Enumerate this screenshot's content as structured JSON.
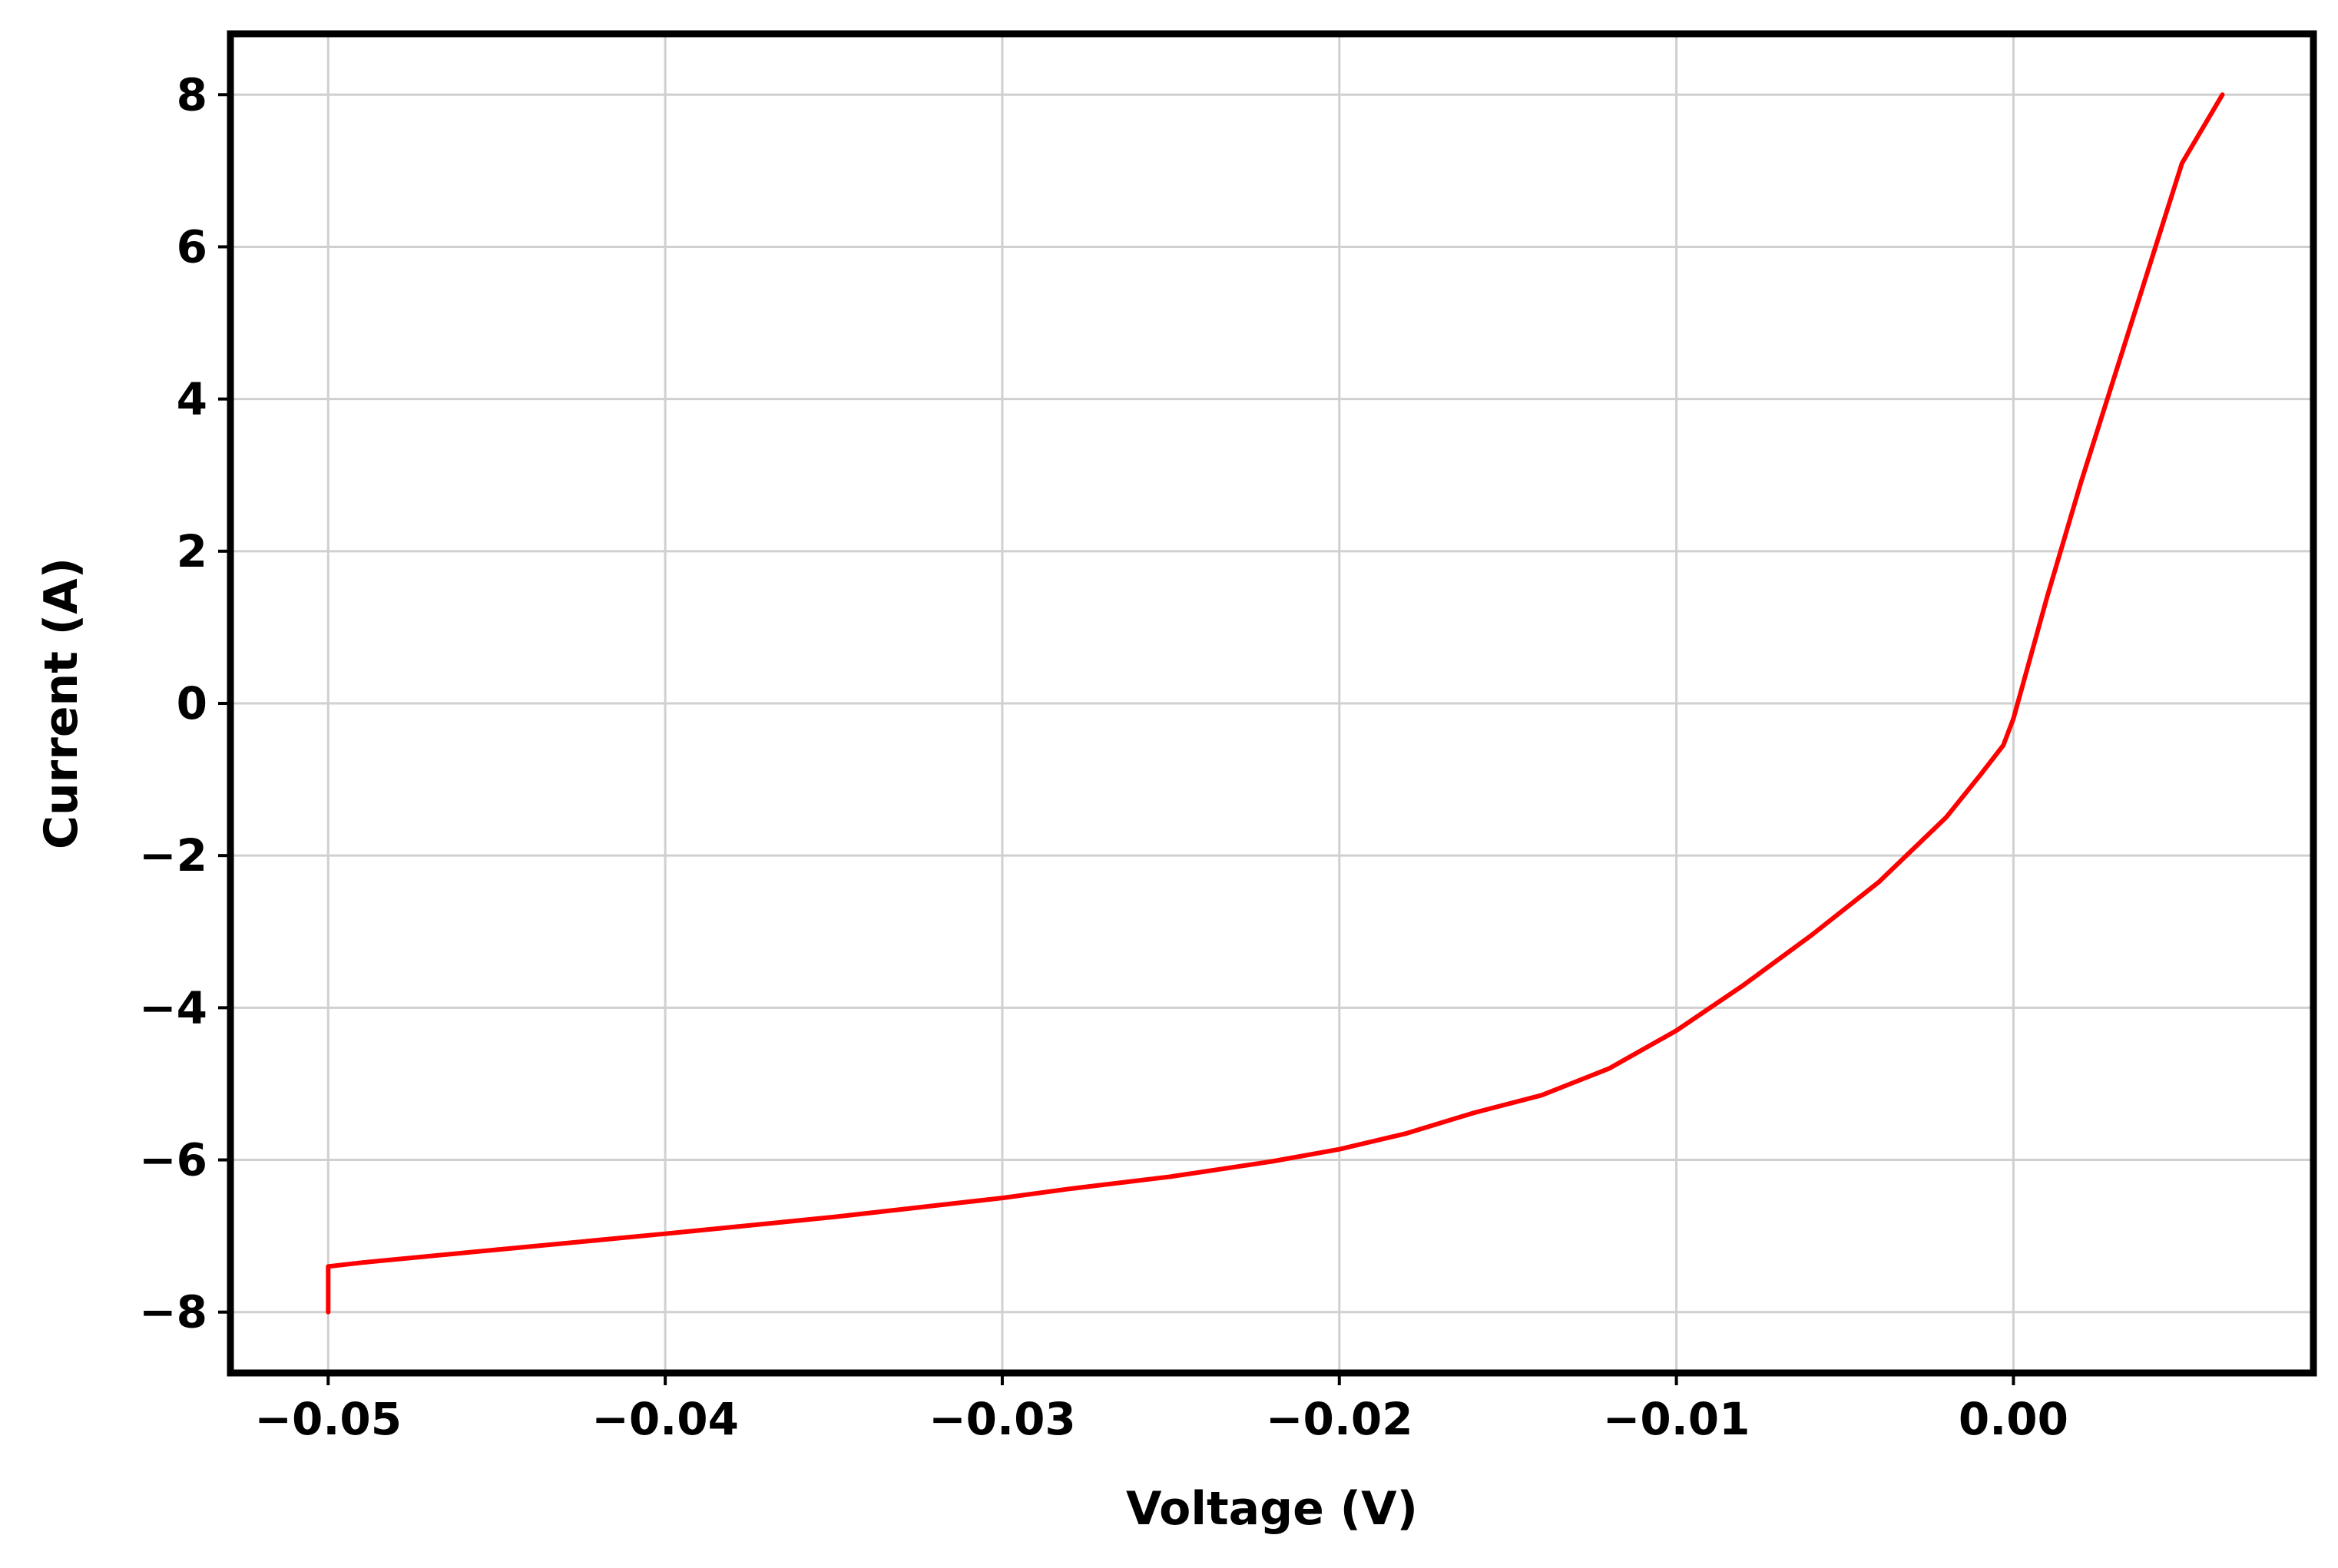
{
  "chart_data": {
    "type": "line",
    "title": "",
    "xlabel": "Voltage (V)",
    "ylabel": "Current (A)",
    "xlim": [
      -0.0529,
      0.0089
    ],
    "ylim": [
      -8.8,
      8.8
    ],
    "grid": true,
    "legend": "none",
    "x_ticks": [
      -0.05,
      -0.04,
      -0.03,
      -0.02,
      -0.01,
      0.0
    ],
    "x_tick_labels": [
      "−0.05",
      "−0.04",
      "−0.03",
      "−0.02",
      "−0.01",
      "0.00"
    ],
    "y_ticks": [
      8,
      6,
      4,
      2,
      0,
      -2,
      -4,
      -6,
      -8
    ],
    "y_tick_labels": [
      "8",
      "6",
      "4",
      "2",
      "0",
      "−2",
      "−4",
      "−6",
      "−8"
    ],
    "colors": {
      "series": "#ff0000",
      "grid": "#d0d0d0",
      "frame": "#000000"
    },
    "series": [
      {
        "x": [
          -0.05,
          -0.05,
          -0.049,
          -0.045,
          -0.04,
          -0.035,
          -0.033,
          -0.03,
          -0.028,
          -0.025,
          -0.022,
          -0.02,
          -0.018,
          -0.016,
          -0.014,
          -0.012,
          -0.01,
          -0.008,
          -0.006,
          -0.004,
          -0.002,
          -0.001,
          -0.0003,
          0.0,
          0.0005,
          0.001,
          0.002,
          0.003,
          0.004,
          0.005,
          0.0062
        ],
        "y": [
          -8.0,
          -7.4,
          -7.35,
          -7.18,
          -6.97,
          -6.75,
          -6.65,
          -6.5,
          -6.38,
          -6.22,
          -6.02,
          -5.86,
          -5.65,
          -5.38,
          -5.15,
          -4.8,
          -4.3,
          -3.7,
          -3.05,
          -2.35,
          -1.5,
          -0.95,
          -0.55,
          -0.2,
          0.6,
          1.4,
          2.9,
          4.3,
          5.7,
          7.1,
          8.0
        ]
      }
    ]
  }
}
